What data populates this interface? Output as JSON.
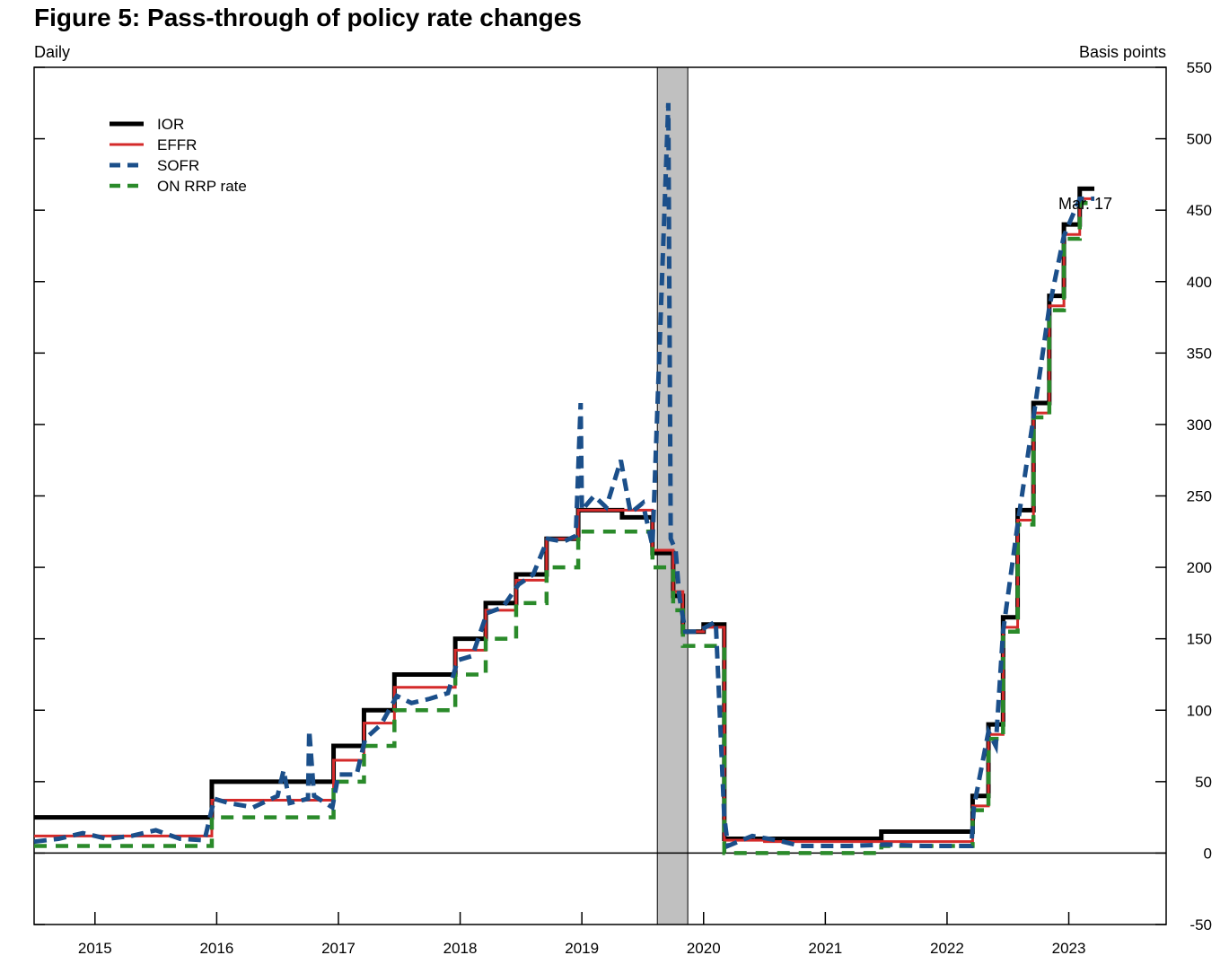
{
  "chart_data": {
    "type": "line",
    "title": "Figure 5: Pass-through of policy rate changes",
    "frequency_label": "Daily",
    "ylabel": "Basis points",
    "ylim": [
      -50,
      550
    ],
    "yticks": [
      -50,
      0,
      50,
      100,
      150,
      200,
      250,
      300,
      350,
      400,
      450,
      500,
      550
    ],
    "xlim": [
      2014.5,
      2023.8
    ],
    "xtick_labels": [
      "2015",
      "2016",
      "2017",
      "2018",
      "2019",
      "2020",
      "2021",
      "2022",
      "2023"
    ],
    "shaded_region": [
      2019.62,
      2019.87
    ],
    "zero_line": true,
    "annotation": "Mar. 17",
    "legend": {
      "position": "top-left",
      "entries": [
        {
          "label": "IOR",
          "color": "#000000",
          "style": "solid-thick"
        },
        {
          "label": "EFFR",
          "color": "#d42a2a",
          "style": "solid"
        },
        {
          "label": "SOFR",
          "color": "#1b4f8a",
          "style": "dashed"
        },
        {
          "label": "ON RRP rate",
          "color": "#2a8a2a",
          "style": "dashed"
        }
      ]
    },
    "series": [
      {
        "name": "IOR",
        "color": "#000000",
        "step_points": [
          [
            2014.5,
            25
          ],
          [
            2015.96,
            50
          ],
          [
            2016.96,
            75
          ],
          [
            2017.21,
            100
          ],
          [
            2017.46,
            125
          ],
          [
            2017.96,
            150
          ],
          [
            2018.21,
            175
          ],
          [
            2018.46,
            195
          ],
          [
            2018.71,
            220
          ],
          [
            2018.97,
            240
          ],
          [
            2019.33,
            235
          ],
          [
            2019.58,
            210
          ],
          [
            2019.75,
            180
          ],
          [
            2019.83,
            155
          ],
          [
            2020.0,
            160
          ],
          [
            2020.17,
            10
          ],
          [
            2021.46,
            15
          ],
          [
            2022.21,
            40
          ],
          [
            2022.34,
            90
          ],
          [
            2022.46,
            165
          ],
          [
            2022.58,
            240
          ],
          [
            2022.71,
            315
          ],
          [
            2022.84,
            390
          ],
          [
            2022.96,
            440
          ],
          [
            2023.09,
            465
          ],
          [
            2023.21,
            465
          ]
        ]
      },
      {
        "name": "EFFR",
        "color": "#d42a2a",
        "step_points": [
          [
            2014.5,
            12
          ],
          [
            2015.96,
            37
          ],
          [
            2016.96,
            65
          ],
          [
            2017.21,
            91
          ],
          [
            2017.46,
            116
          ],
          [
            2017.96,
            142
          ],
          [
            2018.21,
            170
          ],
          [
            2018.46,
            191
          ],
          [
            2018.71,
            220
          ],
          [
            2018.97,
            240
          ],
          [
            2019.33,
            240
          ],
          [
            2019.58,
            212
          ],
          [
            2019.75,
            183
          ],
          [
            2019.83,
            155
          ],
          [
            2020.0,
            158
          ],
          [
            2020.17,
            9
          ],
          [
            2020.5,
            8
          ],
          [
            2021.46,
            8
          ],
          [
            2022.21,
            33
          ],
          [
            2022.34,
            83
          ],
          [
            2022.46,
            158
          ],
          [
            2022.58,
            233
          ],
          [
            2022.71,
            308
          ],
          [
            2022.84,
            383
          ],
          [
            2022.96,
            433
          ],
          [
            2023.09,
            458
          ],
          [
            2023.21,
            458
          ]
        ]
      },
      {
        "name": "SOFR",
        "color": "#1b4f8a",
        "points": [
          [
            2014.5,
            8
          ],
          [
            2014.7,
            10
          ],
          [
            2014.9,
            14
          ],
          [
            2015.1,
            10
          ],
          [
            2015.3,
            12
          ],
          [
            2015.5,
            16
          ],
          [
            2015.7,
            10
          ],
          [
            2015.9,
            9
          ],
          [
            2015.98,
            38
          ],
          [
            2016.1,
            35
          ],
          [
            2016.3,
            32
          ],
          [
            2016.5,
            40
          ],
          [
            2016.55,
            58
          ],
          [
            2016.6,
            35
          ],
          [
            2016.75,
            38
          ],
          [
            2016.76,
            86
          ],
          [
            2016.8,
            40
          ],
          [
            2016.95,
            32
          ],
          [
            2017.0,
            55
          ],
          [
            2017.15,
            55
          ],
          [
            2017.22,
            80
          ],
          [
            2017.35,
            90
          ],
          [
            2017.48,
            110
          ],
          [
            2017.6,
            105
          ],
          [
            2017.75,
            108
          ],
          [
            2017.9,
            112
          ],
          [
            2017.98,
            135
          ],
          [
            2018.1,
            138
          ],
          [
            2018.22,
            168
          ],
          [
            2018.35,
            172
          ],
          [
            2018.48,
            188
          ],
          [
            2018.6,
            195
          ],
          [
            2018.72,
            220
          ],
          [
            2018.85,
            218
          ],
          [
            2018.95,
            222
          ],
          [
            2018.99,
            315
          ],
          [
            2019.0,
            240
          ],
          [
            2019.1,
            250
          ],
          [
            2019.2,
            242
          ],
          [
            2019.32,
            275
          ],
          [
            2019.4,
            238
          ],
          [
            2019.5,
            245
          ],
          [
            2019.58,
            215
          ],
          [
            2019.71,
            525
          ],
          [
            2019.73,
            220
          ],
          [
            2019.77,
            212
          ],
          [
            2019.8,
            180
          ],
          [
            2019.85,
            155
          ],
          [
            2019.95,
            155
          ],
          [
            2020.1,
            162
          ],
          [
            2020.17,
            25
          ],
          [
            2020.2,
            5
          ],
          [
            2020.4,
            12
          ],
          [
            2020.6,
            9
          ],
          [
            2020.8,
            5
          ],
          [
            2021.0,
            5
          ],
          [
            2021.2,
            5
          ],
          [
            2021.5,
            6
          ],
          [
            2021.8,
            5
          ],
          [
            2022.2,
            5
          ],
          [
            2022.22,
            32
          ],
          [
            2022.34,
            85
          ],
          [
            2022.4,
            75
          ],
          [
            2022.46,
            155
          ],
          [
            2022.58,
            230
          ],
          [
            2022.71,
            305
          ],
          [
            2022.84,
            382
          ],
          [
            2022.96,
            432
          ],
          [
            2023.09,
            458
          ],
          [
            2023.21,
            458
          ]
        ]
      },
      {
        "name": "ON RRP rate",
        "color": "#2a8a2a",
        "step_points": [
          [
            2014.5,
            5
          ],
          [
            2015.96,
            25
          ],
          [
            2016.96,
            50
          ],
          [
            2017.21,
            75
          ],
          [
            2017.46,
            100
          ],
          [
            2017.96,
            125
          ],
          [
            2018.21,
            150
          ],
          [
            2018.46,
            175
          ],
          [
            2018.71,
            200
          ],
          [
            2018.97,
            225
          ],
          [
            2019.33,
            225
          ],
          [
            2019.58,
            200
          ],
          [
            2019.75,
            170
          ],
          [
            2019.83,
            145
          ],
          [
            2020.17,
            0
          ],
          [
            2021.46,
            5
          ],
          [
            2022.21,
            30
          ],
          [
            2022.34,
            80
          ],
          [
            2022.46,
            155
          ],
          [
            2022.58,
            230
          ],
          [
            2022.71,
            305
          ],
          [
            2022.84,
            380
          ],
          [
            2022.96,
            430
          ],
          [
            2023.09,
            455
          ],
          [
            2023.21,
            455
          ]
        ]
      }
    ]
  }
}
